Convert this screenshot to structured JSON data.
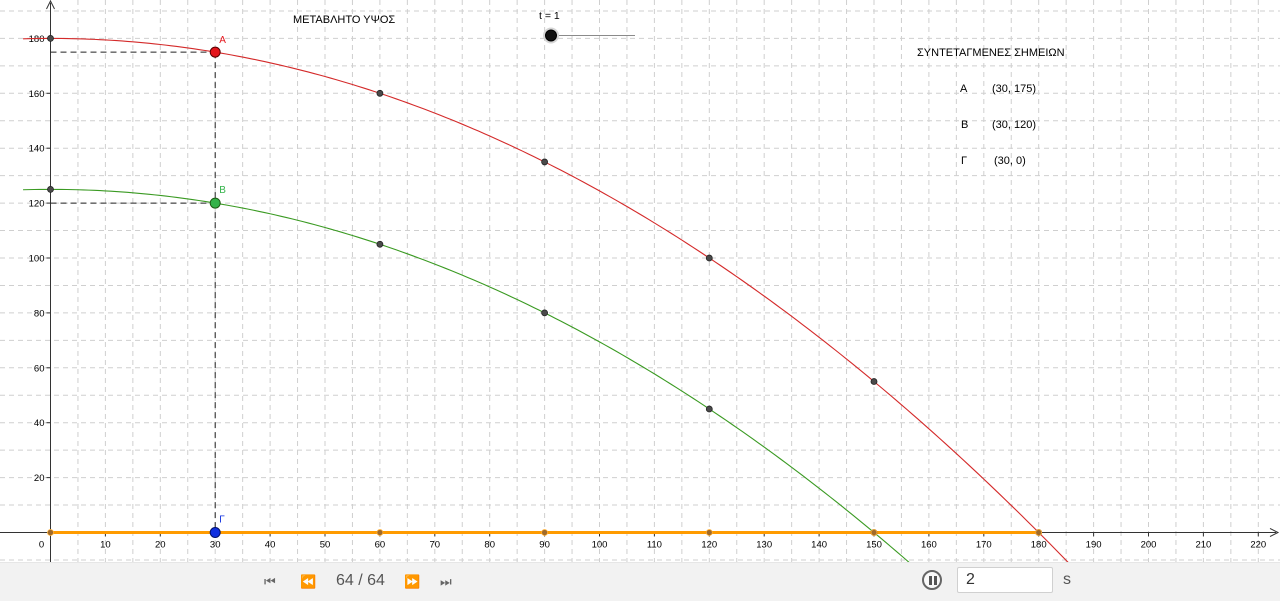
{
  "header": {
    "title": "ΜΕΤΑΒΛΗΤΟ ΥΨΟΣ",
    "slider_label": "t = 1",
    "slider_value": 1
  },
  "coords_panel": {
    "title": "ΣΥΝΤΕΤΑΓΜΕΝΕΣ ΣΗΜΕΙΩΝ",
    "rows": [
      {
        "name": "A",
        "coords": "(30, 175)"
      },
      {
        "name": "B",
        "coords": "(30, 120)"
      },
      {
        "name": "Γ",
        "coords": "(30, 0)"
      }
    ]
  },
  "colors": {
    "curve_a": "#d42a2a",
    "curve_b": "#3a9a22",
    "point_a": "#e4141b",
    "point_b": "#34b34a",
    "point_g": "#1030e0",
    "ground": "#ff9b00",
    "grid": "#cfcfcf"
  },
  "graph": {
    "x_ticks": [
      "0",
      "10",
      "20",
      "30",
      "40",
      "50",
      "60",
      "70",
      "80",
      "90",
      "100",
      "110",
      "120",
      "130",
      "140",
      "150",
      "160",
      "170",
      "180",
      "190",
      "200",
      "210",
      "220"
    ],
    "y_ticks": [
      "20",
      "40",
      "60",
      "80",
      "100",
      "120",
      "140",
      "160",
      "180"
    ],
    "grid": true
  },
  "chart_data": {
    "type": "line",
    "xlim": [
      0,
      222
    ],
    "ylim": [
      0,
      186
    ],
    "series": [
      {
        "name": "A",
        "curve": {
          "top": 180,
          "zero_at": 180
        },
        "points": [
          [
            0,
            180
          ],
          [
            30,
            175
          ],
          [
            60,
            160
          ],
          [
            90,
            135
          ],
          [
            120,
            100
          ],
          [
            150,
            55
          ],
          [
            180,
            0
          ]
        ],
        "label": "A",
        "moving_point": [
          30,
          175
        ]
      },
      {
        "name": "B",
        "curve": {
          "top": 125,
          "zero_at": 150
        },
        "points": [
          [
            0,
            125
          ],
          [
            30,
            120
          ],
          [
            60,
            105
          ],
          [
            90,
            80
          ],
          [
            120,
            45
          ],
          [
            150,
            0
          ]
        ],
        "label": "B",
        "moving_point": [
          30,
          120
        ]
      },
      {
        "name": "Γ",
        "points": [
          [
            0,
            0
          ],
          [
            30,
            0
          ],
          [
            60,
            0
          ],
          [
            90,
            0
          ],
          [
            120,
            0
          ],
          [
            150,
            0
          ],
          [
            180,
            0
          ]
        ],
        "label": "Γ",
        "moving_point": [
          30,
          0
        ]
      }
    ]
  },
  "playback": {
    "first_icon": "skip-first-icon",
    "prev_icon": "rewind-icon",
    "next_icon": "fast-forward-icon",
    "last_icon": "skip-last-icon",
    "counter": "64 / 64",
    "pause_icon": "pause-icon",
    "speed_value": "2",
    "speed_unit": "s"
  }
}
